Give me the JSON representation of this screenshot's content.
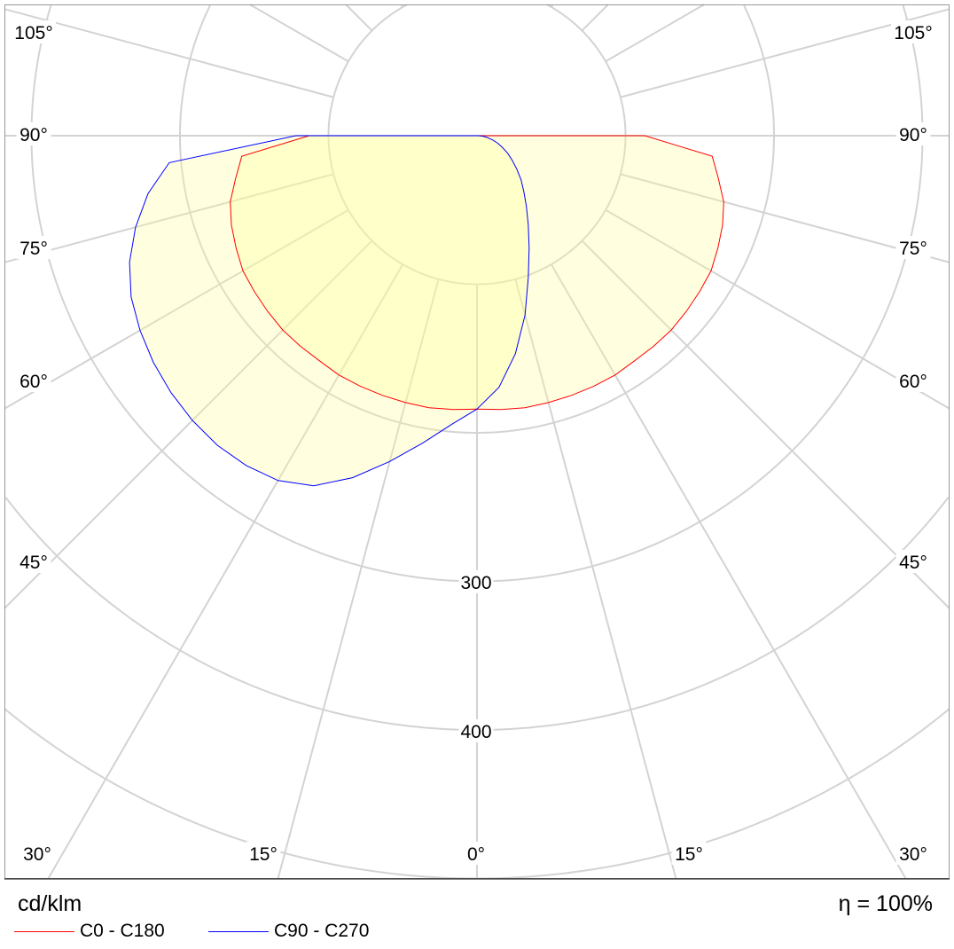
{
  "chart_data": {
    "type": "polar",
    "unit_label": "cd/klm",
    "efficiency_label": "η = 100%",
    "radial_ticks": [
      100,
      200,
      300,
      400,
      500
    ],
    "radial_tick_labels": [
      "300",
      "400"
    ],
    "angle_labels": {
      "sides": [
        "105°",
        "90°",
        "75°",
        "60°",
        "45°"
      ],
      "bottom": [
        "30°",
        "15°",
        "0°",
        "15°",
        "30°"
      ]
    },
    "angles": [
      0,
      5,
      10,
      15,
      20,
      25,
      30,
      35,
      40,
      45,
      50,
      55,
      60,
      65,
      70,
      75,
      80,
      85,
      90
    ],
    "series": [
      {
        "name": "C0 - C180",
        "color": "#ff0000",
        "right": [
          184,
          185,
          186,
          186,
          186,
          186,
          186,
          185,
          185,
          185,
          184,
          183,
          182,
          179,
          176,
          172,
          165,
          159,
          113
        ],
        "left": [
          184,
          185,
          186,
          186,
          186,
          186,
          186,
          185,
          185,
          185,
          184,
          183,
          182,
          179,
          176,
          172,
          165,
          159,
          113
        ]
      },
      {
        "name": "C90 - C270",
        "color": "#0000ff",
        "right": [
          184,
          170,
          149,
          125,
          101,
          83,
          69,
          58,
          49,
          42,
          35,
          29,
          24,
          19,
          15,
          11,
          7,
          4,
          1
        ],
        "left": [
          184,
          195,
          210,
          227,
          245,
          260,
          268,
          271,
          272,
          271,
          269,
          266,
          262,
          257,
          249,
          238,
          225,
          208,
          122
        ]
      }
    ],
    "fill_color": "#ffff99",
    "grid_color": "#d3d3d3"
  }
}
